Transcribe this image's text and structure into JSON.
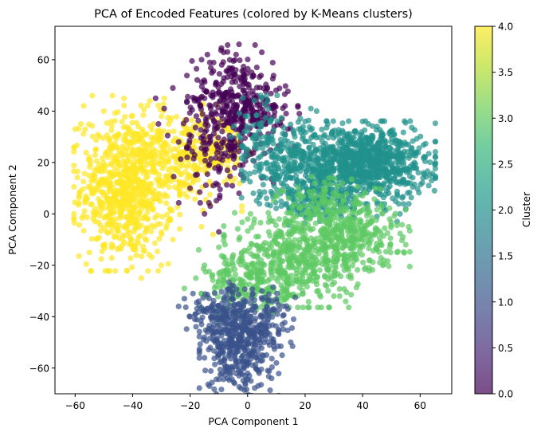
{
  "chart_data": {
    "type": "scatter",
    "title": "PCA of Encoded Features (colored by K-Means clusters)",
    "xlabel": "PCA Component 1",
    "ylabel": "PCA Component 2",
    "xlim": [
      -67,
      71
    ],
    "ylim": [
      -70,
      73
    ],
    "xticks": [
      -60,
      -40,
      -20,
      0,
      20,
      40,
      60
    ],
    "yticks": [
      -60,
      -40,
      -20,
      0,
      20,
      40,
      60
    ],
    "xtick_labels": [
      "−60",
      "−40",
      "−20",
      "0",
      "20",
      "40",
      "60"
    ],
    "ytick_labels": [
      "−60",
      "−40",
      "−20",
      "0",
      "20",
      "40",
      "60"
    ],
    "grid": false,
    "colormap": "viridis",
    "point_alpha": 0.7,
    "colorbar": {
      "label": "Cluster",
      "range": [
        0.0,
        4.0
      ],
      "ticks": [
        0.0,
        0.5,
        1.0,
        1.5,
        2.0,
        2.5,
        3.0,
        3.5,
        4.0
      ],
      "tick_labels": [
        "0.0",
        "0.5",
        "1.0",
        "1.5",
        "2.0",
        "2.5",
        "3.0",
        "3.5",
        "4.0"
      ]
    },
    "clusters": [
      {
        "cluster": 4,
        "color": "#fde725",
        "blobs": [
          {
            "cx": -42,
            "cy": 10,
            "sx": 8,
            "sy": 14,
            "n": 750
          },
          {
            "cx": -22,
            "cy": 22,
            "sx": 7,
            "sy": 9,
            "n": 200
          },
          {
            "cx": -10,
            "cy": 25,
            "sx": 5,
            "sy": 7,
            "n": 90
          }
        ],
        "points": [
          [
            -60,
            33
          ],
          [
            -57,
            42
          ],
          [
            -54,
            46
          ],
          [
            -47,
            46
          ],
          [
            -43,
            45
          ],
          [
            -37,
            -25
          ],
          [
            -42,
            -22
          ],
          [
            -30,
            -20
          ],
          [
            -26,
            -10
          ],
          [
            -16,
            -5
          ],
          [
            -12,
            -8
          ],
          [
            -2,
            1
          ],
          [
            -2,
            3
          ],
          [
            -29,
            45
          ],
          [
            -34,
            44
          ],
          [
            -50,
            40
          ],
          [
            -58,
            35
          ],
          [
            -53,
            10
          ],
          [
            -55,
            22
          ]
        ]
      },
      {
        "cluster": 0,
        "color": "#440154",
        "blobs": [
          {
            "cx": -5,
            "cy": 45,
            "sx": 7,
            "sy": 9,
            "n": 260
          },
          {
            "cx": -10,
            "cy": 25,
            "sx": 8,
            "sy": 9,
            "n": 130
          },
          {
            "cx": 6,
            "cy": 40,
            "sx": 5,
            "sy": 6,
            "n": 80
          }
        ],
        "points": [
          [
            -3,
            66
          ],
          [
            -4,
            62
          ],
          [
            -9,
            58
          ],
          [
            -14,
            62
          ],
          [
            -16,
            60
          ],
          [
            -7,
            63
          ],
          [
            -26,
            49
          ],
          [
            -32,
            45
          ],
          [
            -29,
            41
          ],
          [
            -31,
            35
          ],
          [
            -15,
            0
          ],
          [
            -13,
            3
          ],
          [
            -10,
            -7
          ],
          [
            -3,
            8
          ],
          [
            5,
            14
          ],
          [
            9,
            12
          ],
          [
            13,
            42
          ],
          [
            18,
            39
          ],
          [
            14,
            33
          ],
          [
            -21,
            22
          ],
          [
            -24,
            28
          ],
          [
            -20,
            10
          ]
        ]
      },
      {
        "cluster": 2,
        "color": "#21918c",
        "blobs": [
          {
            "cx": 40,
            "cy": 20,
            "sx": 11,
            "sy": 7,
            "n": 900
          },
          {
            "cx": 14,
            "cy": 20,
            "sx": 7,
            "sy": 8,
            "n": 220
          },
          {
            "cx": 25,
            "cy": 5,
            "sx": 10,
            "sy": 5,
            "n": 160
          },
          {
            "cx": 3,
            "cy": 30,
            "sx": 4,
            "sy": 7,
            "n": 60
          }
        ],
        "points": [
          [
            64,
            13
          ],
          [
            65,
            9
          ],
          [
            63,
            11
          ],
          [
            61,
            14
          ],
          [
            58,
            20
          ],
          [
            53,
            28
          ],
          [
            51,
            31
          ],
          [
            45,
            34
          ],
          [
            40,
            36
          ],
          [
            42,
            35
          ],
          [
            22,
            41
          ],
          [
            24,
            40
          ],
          [
            20,
            36
          ],
          [
            5,
            45
          ],
          [
            7,
            44
          ],
          [
            0,
            38
          ],
          [
            55,
            2
          ],
          [
            53,
            0
          ],
          [
            52,
            -3
          ],
          [
            45,
            -1
          ],
          [
            0,
            23
          ],
          [
            2,
            8
          ],
          [
            -1,
            16
          ]
        ]
      },
      {
        "cluster": 3,
        "color": "#5ec962",
        "blobs": [
          {
            "cx": 17,
            "cy": -18,
            "sx": 11,
            "sy": 8,
            "n": 500
          },
          {
            "cx": 38,
            "cy": -8,
            "sx": 8,
            "sy": 6,
            "n": 230
          },
          {
            "cx": 0,
            "cy": -28,
            "sx": 7,
            "sy": 6,
            "n": 170
          },
          {
            "cx": 28,
            "cy": 3,
            "sx": 9,
            "sy": 5,
            "n": 120
          }
        ],
        "points": [
          [
            -22,
            -29
          ],
          [
            -18,
            -25
          ],
          [
            -17,
            -14
          ],
          [
            -15,
            -20
          ],
          [
            -10,
            -13
          ],
          [
            -5,
            -16
          ],
          [
            -3,
            -10
          ],
          [
            0,
            -2
          ],
          [
            1,
            0
          ],
          [
            28,
            -30
          ],
          [
            30,
            -32
          ],
          [
            32,
            -32
          ],
          [
            36,
            -25
          ],
          [
            41,
            -21
          ],
          [
            47,
            -20
          ],
          [
            52,
            -15
          ],
          [
            55,
            -12
          ],
          [
            56,
            -5
          ],
          [
            54,
            -9
          ],
          [
            40,
            7
          ],
          [
            23,
            2
          ],
          [
            11,
            9
          ],
          [
            -7,
            -22
          ]
        ]
      },
      {
        "cluster": 1,
        "color": "#3b528b",
        "blobs": [
          {
            "cx": -3,
            "cy": -50,
            "sx": 6,
            "sy": 9,
            "n": 420
          },
          {
            "cx": -10,
            "cy": -38,
            "sx": 5,
            "sy": 5,
            "n": 90
          },
          {
            "cx": 8,
            "cy": -40,
            "sx": 4,
            "sy": 5,
            "n": 60
          }
        ],
        "points": [
          [
            -24,
            -36
          ],
          [
            -22,
            -33
          ],
          [
            -19,
            -31
          ],
          [
            -17,
            -34
          ],
          [
            -20,
            -40
          ],
          [
            -16,
            -43
          ],
          [
            -14,
            -46
          ],
          [
            -12,
            -49
          ],
          [
            -13,
            -52
          ],
          [
            -10,
            -55
          ],
          [
            -15,
            -56
          ],
          [
            -7,
            -64
          ],
          [
            -3,
            -63
          ],
          [
            0,
            -62
          ],
          [
            4,
            -62
          ],
          [
            7,
            -61
          ],
          [
            10,
            -58
          ],
          [
            12,
            -55
          ],
          [
            15,
            -50
          ],
          [
            12,
            -43
          ],
          [
            16,
            -41
          ],
          [
            14,
            -37
          ],
          [
            10,
            -34
          ],
          [
            5,
            -30
          ],
          [
            -6,
            -30
          ],
          [
            -9,
            -35
          ],
          [
            -5,
            -28
          ]
        ]
      }
    ]
  }
}
